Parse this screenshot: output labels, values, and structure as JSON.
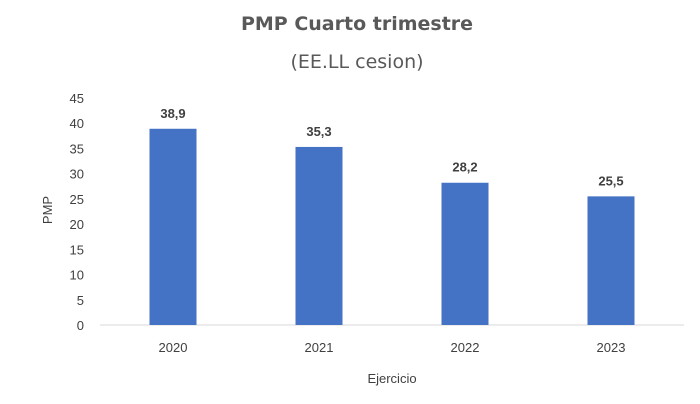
{
  "chart_data": {
    "type": "bar",
    "title": "PMP Cuarto trimestre",
    "subtitle": "(EE.LL cesion)",
    "xlabel": "Ejercicio",
    "ylabel": "PMP",
    "categories": [
      "2020",
      "2021",
      "2022",
      "2023"
    ],
    "values": [
      38.9,
      35.3,
      28.2,
      25.5
    ],
    "data_labels": [
      "38,9",
      "35,3",
      "28,2",
      "25,5"
    ],
    "ylim": [
      0,
      45
    ],
    "yticks": [
      0,
      5,
      10,
      15,
      20,
      25,
      30,
      35,
      40,
      45
    ],
    "grid": false,
    "legend": "none",
    "bar_color": "#4472C4",
    "axis_color": "#D9D9D9"
  }
}
